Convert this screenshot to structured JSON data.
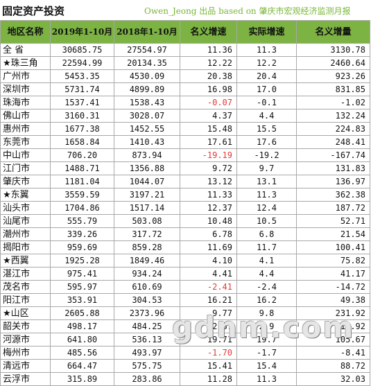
{
  "header": {
    "title": "固定资产投资",
    "source": "Owen_Jeong 出品 based on 肇庆市宏观经济监测月报"
  },
  "table": {
    "columns": [
      "地区名称",
      "2019年1-10月",
      "2018年1-10月",
      "名义增速",
      "实际增速",
      "名义增量"
    ],
    "rows": [
      {
        "name": "全  省",
        "y2019": "30685.75",
        "y2018": "27554.97",
        "nominal": "11.36",
        "real": "11.3",
        "inc": "3130.78",
        "neg": false
      },
      {
        "name": "★珠三角",
        "y2019": "22594.99",
        "y2018": "20134.35",
        "nominal": "12.22",
        "real": "12.2",
        "inc": "2460.64",
        "neg": false
      },
      {
        "name": "广州市",
        "y2019": "5453.35",
        "y2018": "4530.09",
        "nominal": "20.38",
        "real": "20.4",
        "inc": "923.26",
        "neg": false
      },
      {
        "name": "深圳市",
        "y2019": "5731.74",
        "y2018": "4899.89",
        "nominal": "16.98",
        "real": "17.0",
        "inc": "831.85",
        "neg": false
      },
      {
        "name": "珠海市",
        "y2019": "1537.41",
        "y2018": "1538.43",
        "nominal": "-0.07",
        "real": "-0.1",
        "inc": "-1.02",
        "neg": true
      },
      {
        "name": "佛山市",
        "y2019": "3160.31",
        "y2018": "3028.07",
        "nominal": "4.37",
        "real": "4.4",
        "inc": "132.24",
        "neg": false
      },
      {
        "name": "惠州市",
        "y2019": "1677.38",
        "y2018": "1452.55",
        "nominal": "15.48",
        "real": "15.5",
        "inc": "224.83",
        "neg": false
      },
      {
        "name": "东莞市",
        "y2019": "1658.84",
        "y2018": "1410.43",
        "nominal": "17.61",
        "real": "17.6",
        "inc": "248.41",
        "neg": false
      },
      {
        "name": "中山市",
        "y2019": "706.20",
        "y2018": "873.94",
        "nominal": "-19.19",
        "real": "-19.2",
        "inc": "-167.74",
        "neg": true
      },
      {
        "name": "江门市",
        "y2019": "1488.71",
        "y2018": "1356.88",
        "nominal": "9.72",
        "real": "9.7",
        "inc": "131.83",
        "neg": false
      },
      {
        "name": "肇庆市",
        "y2019": "1181.04",
        "y2018": "1044.07",
        "nominal": "13.12",
        "real": "13.1",
        "inc": "136.97",
        "neg": false
      },
      {
        "name": "★东翼",
        "y2019": "3559.59",
        "y2018": "3197.21",
        "nominal": "11.33",
        "real": "11.3",
        "inc": "362.38",
        "neg": false
      },
      {
        "name": "汕头市",
        "y2019": "1704.86",
        "y2018": "1517.14",
        "nominal": "12.37",
        "real": "12.4",
        "inc": "187.72",
        "neg": false
      },
      {
        "name": "汕尾市",
        "y2019": "555.79",
        "y2018": "503.08",
        "nominal": "10.48",
        "real": "10.5",
        "inc": "52.71",
        "neg": false
      },
      {
        "name": "潮州市",
        "y2019": "339.26",
        "y2018": "317.72",
        "nominal": "6.78",
        "real": "6.8",
        "inc": "21.54",
        "neg": false
      },
      {
        "name": "揭阳市",
        "y2019": "959.69",
        "y2018": "859.28",
        "nominal": "11.69",
        "real": "11.7",
        "inc": "100.41",
        "neg": false
      },
      {
        "name": "★西翼",
        "y2019": "1925.28",
        "y2018": "1849.46",
        "nominal": "4.10",
        "real": "4.1",
        "inc": "75.82",
        "neg": false
      },
      {
        "name": "湛江市",
        "y2019": "975.41",
        "y2018": "934.24",
        "nominal": "4.41",
        "real": "4.4",
        "inc": "41.17",
        "neg": false
      },
      {
        "name": "茂名市",
        "y2019": "595.97",
        "y2018": "610.69",
        "nominal": "-2.41",
        "real": "-2.4",
        "inc": "-14.72",
        "neg": true
      },
      {
        "name": "阳江市",
        "y2019": "353.91",
        "y2018": "304.53",
        "nominal": "16.21",
        "real": "16.2",
        "inc": "49.38",
        "neg": false
      },
      {
        "name": "★山区",
        "y2019": "2605.88",
        "y2018": "2373.96",
        "nominal": "9.77",
        "real": "9.8",
        "inc": "231.92",
        "neg": false
      },
      {
        "name": "韶关市",
        "y2019": "498.17",
        "y2018": "484.25",
        "nominal": "2.87",
        "real": "2.9",
        "inc": "13.92",
        "neg": false
      },
      {
        "name": "河源市",
        "y2019": "641.80",
        "y2018": "536.13",
        "nominal": "19.71",
        "real": "19.7",
        "inc": "105.67",
        "neg": false
      },
      {
        "name": "梅州市",
        "y2019": "485.56",
        "y2018": "493.97",
        "nominal": "-1.70",
        "real": "-1.7",
        "inc": "-8.41",
        "neg": true
      },
      {
        "name": "清远市",
        "y2019": "664.47",
        "y2018": "575.75",
        "nominal": "15.41",
        "real": "15.4",
        "inc": "88.72",
        "neg": false
      },
      {
        "name": "云浮市",
        "y2019": "315.89",
        "y2018": "283.86",
        "nominal": "11.28",
        "real": "11.3",
        "inc": "32.03",
        "neg": false
      }
    ]
  },
  "watermark": "gdnm.com"
}
